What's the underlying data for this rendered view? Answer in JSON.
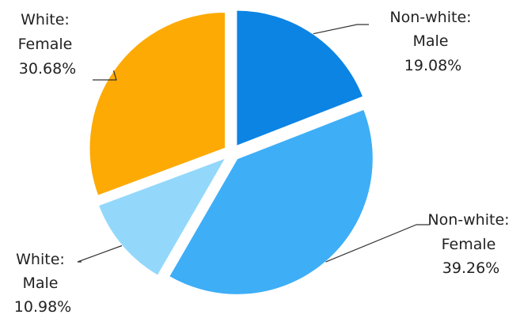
{
  "chart_data": {
    "type": "pie",
    "title": "",
    "slices": [
      {
        "label_lines": [
          "Non-white:",
          "Male"
        ],
        "value_label": "19.08%",
        "value": 19.08,
        "color": "#0b84e4"
      },
      {
        "label_lines": [
          "Non-white:",
          "Female"
        ],
        "value_label": "39.26%",
        "value": 39.26,
        "color": "#3eaef7"
      },
      {
        "label_lines": [
          "White:",
          "Male"
        ],
        "value_label": "10.98%",
        "value": 10.98,
        "color": "#93d8fb"
      },
      {
        "label_lines": [
          "White:",
          "Female"
        ],
        "value_label": "30.68%",
        "value": 30.68,
        "color": "#fdaa04"
      }
    ],
    "start_angle": "12 o'clock",
    "direction": "clockwise",
    "slices_exploded": true,
    "legend": "none",
    "labels": "outside with leader lines"
  }
}
